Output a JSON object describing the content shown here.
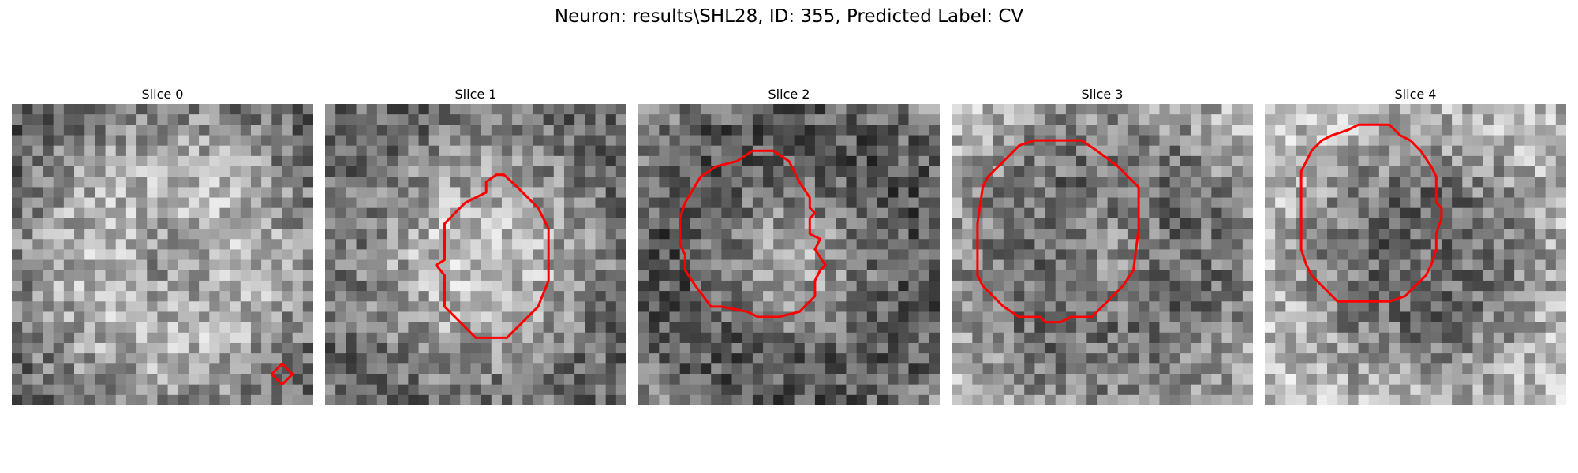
{
  "figure": {
    "title": "Neuron: results\\SHL28, ID: 355, Predicted Label: CV"
  },
  "style": {
    "contour_color": "#ff0000"
  },
  "panels": [
    {
      "title": "Slice 0",
      "brightness": [
        0.2,
        0.8
      ],
      "contour": [
        [
          26,
          25
        ],
        [
          27,
          26
        ],
        [
          26,
          27
        ],
        [
          25,
          26
        ]
      ]
    },
    {
      "title": "Slice 1",
      "brightness": [
        0.3,
        0.85
      ],
      "contour": [
        [
          15.5,
          7.5
        ],
        [
          16.5,
          6.8
        ],
        [
          17.2,
          6.8
        ],
        [
          18.5,
          8
        ],
        [
          20.5,
          10
        ],
        [
          21.5,
          12
        ],
        [
          21.5,
          17
        ],
        [
          20.5,
          19.5
        ],
        [
          17.5,
          22.5
        ],
        [
          14.5,
          22.5
        ],
        [
          11.5,
          19.5
        ],
        [
          11.5,
          16.5
        ],
        [
          10.7,
          15.5
        ],
        [
          11.5,
          15
        ],
        [
          11.5,
          11.5
        ],
        [
          13.5,
          9.5
        ],
        [
          15.5,
          8.5
        ]
      ]
    },
    {
      "title": "Slice 2",
      "brightness": [
        0.2,
        0.8
      ],
      "contour": [
        [
          9.5,
          5.5
        ],
        [
          11,
          4.5
        ],
        [
          13,
          4.5
        ],
        [
          14.5,
          5.5
        ],
        [
          15,
          6.5
        ],
        [
          15.5,
          7.5
        ],
        [
          16.5,
          9
        ],
        [
          16.5,
          10
        ],
        [
          17,
          10.5
        ],
        [
          16.5,
          11
        ],
        [
          16.5,
          12.5
        ],
        [
          17.5,
          13
        ],
        [
          17,
          14
        ],
        [
          18,
          15.5
        ],
        [
          17.5,
          16
        ],
        [
          17,
          17
        ],
        [
          17,
          18.5
        ],
        [
          16.5,
          19
        ],
        [
          15.5,
          20
        ],
        [
          13.5,
          20.5
        ],
        [
          11.5,
          20.5
        ],
        [
          10.5,
          20
        ],
        [
          8,
          19.5
        ],
        [
          7,
          19.5
        ],
        [
          5.5,
          17.5
        ],
        [
          4.5,
          16
        ],
        [
          4.5,
          14.5
        ],
        [
          4,
          13.5
        ],
        [
          4,
          11
        ],
        [
          4.5,
          9.5
        ],
        [
          6,
          7
        ],
        [
          7.5,
          6
        ]
      ]
    },
    {
      "title": "Slice 3",
      "brightness": [
        0.35,
        0.85
      ],
      "contour": [
        [
          8,
          3.5
        ],
        [
          12.5,
          3.5
        ],
        [
          14,
          4.5
        ],
        [
          16,
          6
        ],
        [
          17.5,
          7.5
        ],
        [
          18,
          8
        ],
        [
          18,
          11
        ],
        [
          18,
          12
        ],
        [
          17.5,
          16
        ],
        [
          16.5,
          17.5
        ],
        [
          15,
          19
        ],
        [
          14,
          20
        ],
        [
          13.5,
          20.5
        ],
        [
          11.5,
          20.5
        ],
        [
          10.5,
          21
        ],
        [
          9,
          21
        ],
        [
          8.5,
          20.5
        ],
        [
          6.5,
          20.5
        ],
        [
          5,
          19.5
        ],
        [
          3,
          17.5
        ],
        [
          2.5,
          16.5
        ],
        [
          2.5,
          15
        ],
        [
          2.5,
          11.5
        ],
        [
          3,
          8
        ],
        [
          3.5,
          7
        ],
        [
          5,
          5.5
        ],
        [
          6.5,
          4
        ]
      ]
    },
    {
      "title": "Slice 4",
      "brightness": [
        0.3,
        0.85
      ],
      "contour": [
        [
          9,
          2
        ],
        [
          12,
          2
        ],
        [
          13,
          3
        ],
        [
          14,
          3.5
        ],
        [
          15,
          4.5
        ],
        [
          16,
          6
        ],
        [
          16.5,
          7
        ],
        [
          16.5,
          8
        ],
        [
          16.5,
          9.5
        ],
        [
          17,
          10
        ],
        [
          17,
          11
        ],
        [
          16.5,
          12.5
        ],
        [
          16.5,
          14
        ],
        [
          16,
          15.5
        ],
        [
          15.5,
          16.5
        ],
        [
          14.5,
          17.5
        ],
        [
          13.5,
          18.5
        ],
        [
          12,
          19
        ],
        [
          11,
          19
        ],
        [
          9,
          19
        ],
        [
          7,
          19
        ],
        [
          5.5,
          17.5
        ],
        [
          4.5,
          16.5
        ],
        [
          4,
          15.5
        ],
        [
          3.5,
          14
        ],
        [
          3.5,
          12.5
        ],
        [
          3.5,
          9.5
        ],
        [
          3.5,
          6.5
        ],
        [
          4.5,
          4.5
        ],
        [
          5.5,
          3.5
        ],
        [
          6.5,
          3
        ],
        [
          8,
          2.5
        ]
      ]
    }
  ]
}
